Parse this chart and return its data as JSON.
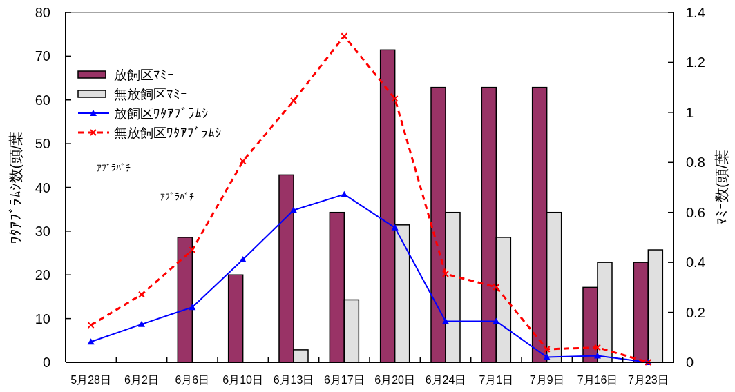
{
  "chart_data": {
    "type": "bar",
    "ylabel": "ﾜﾀｱﾌﾞﾗﾑｼ数(頭/葉",
    "y2label": "ﾏﾐｰ数(頭/葉",
    "categories": [
      "5月28日",
      "6月2日",
      "6月6日",
      "6月10日",
      "6月13日",
      "6月17日",
      "6月20日",
      "6月24日",
      "7月1日",
      "7月9日",
      "7月16日",
      "7月23日"
    ],
    "series": [
      {
        "name": "放飼区ﾏﾐｰ",
        "axis": "y2",
        "color": "#993366",
        "values": [
          null,
          null,
          0.5,
          0.35,
          0.75,
          0.6,
          1.25,
          1.1,
          1.1,
          1.1,
          0.3,
          0.4
        ]
      },
      {
        "name": "無放飼区ﾏﾐｰ",
        "axis": "y2",
        "color": "#e0e0e0",
        "values": [
          null,
          null,
          null,
          null,
          0.05,
          0.25,
          0.55,
          0.6,
          0.5,
          0.6,
          0.4,
          0.45
        ]
      },
      {
        "name": "放飼区ﾜﾀｱﾌﾞﾗﾑｼ",
        "type": "line",
        "color": "#0000ff",
        "marker": "triangle",
        "line_style": "solid",
        "values": [
          4.7,
          8.7,
          12.6,
          23.5,
          34.8,
          38.4,
          30.8,
          9.4,
          9.4,
          1.2,
          1.5,
          0
        ]
      },
      {
        "name": "無放飼区ﾜﾀｱﾌﾞﾗﾑｼ",
        "type": "line",
        "color": "#ff0000",
        "marker": "cross",
        "line_style": "dashed",
        "values": [
          8.5,
          15.5,
          25.7,
          46,
          59.8,
          74.6,
          60.3,
          20.2,
          17.2,
          3.0,
          3.4,
          0
        ]
      }
    ],
    "ylim": [
      0,
      80
    ],
    "yticks": [
      0,
      10,
      20,
      30,
      40,
      50,
      60,
      70,
      80
    ],
    "y2lim": [
      0,
      1.4
    ],
    "y2ticks": [
      0,
      0.2,
      0.4,
      0.6,
      0.8,
      1,
      1.2,
      1.4
    ],
    "legend": "top left",
    "annotations": [
      "ｱﾌﾞﾗﾊﾞﾁ",
      "ｱﾌﾞﾗﾊﾞﾁ"
    ]
  }
}
